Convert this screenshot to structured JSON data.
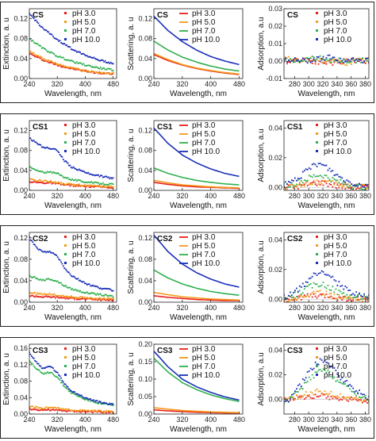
{
  "colors": {
    "pH 3.0": "#e8201c",
    "pH 5.0": "#f39a1b",
    "pH 7.0": "#2fb04f",
    "pH 10.0": "#1a2fb8"
  },
  "legend_items": [
    "pH 3.0",
    "pH 5.0",
    "pH 7.0",
    "pH 10.0"
  ],
  "chart_data": [
    {
      "sample": "CS",
      "panel": "extinction",
      "type": "scatter",
      "title": "CS",
      "xlabel": "Wavelength, nm",
      "ylabel": "Extinction, a. u",
      "xlim": [
        240,
        490
      ],
      "ylim": [
        0,
        0.14
      ],
      "xticks": [
        "240",
        "320",
        "400",
        "480"
      ],
      "yticks": [
        "0.00",
        "0.04",
        "0.08",
        "0.12"
      ],
      "x": [
        240,
        280,
        320,
        360,
        400,
        440,
        480
      ],
      "series": [
        {
          "name": "pH 3.0",
          "values": [
            0.05,
            0.037,
            0.027,
            0.02,
            0.015,
            0.011,
            0.009
          ]
        },
        {
          "name": "pH 5.0",
          "values": [
            0.055,
            0.04,
            0.029,
            0.021,
            0.016,
            0.012,
            0.01
          ]
        },
        {
          "name": "pH 7.0",
          "values": [
            0.08,
            0.06,
            0.045,
            0.035,
            0.027,
            0.021,
            0.017
          ]
        },
        {
          "name": "pH 10.0",
          "values": [
            0.13,
            0.1,
            0.078,
            0.06,
            0.047,
            0.037,
            0.03
          ]
        }
      ]
    },
    {
      "sample": "CS",
      "panel": "scattering",
      "type": "line",
      "title": "CS",
      "xlabel": "Wavelength, nm",
      "ylabel": "Scattering, a. u",
      "xlim": [
        240,
        490
      ],
      "ylim": [
        0,
        0.14
      ],
      "xticks": [
        "240",
        "320",
        "400",
        "480"
      ],
      "yticks": [
        "0.00",
        "0.04",
        "0.08",
        "0.12"
      ],
      "x": [
        240,
        280,
        320,
        360,
        400,
        440,
        480
      ],
      "series": [
        {
          "name": "pH 3.0",
          "values": [
            0.048,
            0.036,
            0.027,
            0.02,
            0.015,
            0.011,
            0.008
          ]
        },
        {
          "name": "pH 5.0",
          "values": [
            0.05,
            0.038,
            0.028,
            0.021,
            0.016,
            0.012,
            0.009
          ]
        },
        {
          "name": "pH 7.0",
          "values": [
            0.075,
            0.057,
            0.043,
            0.033,
            0.025,
            0.019,
            0.015
          ]
        },
        {
          "name": "pH 10.0",
          "values": [
            0.125,
            0.096,
            0.074,
            0.057,
            0.044,
            0.035,
            0.028
          ]
        }
      ]
    },
    {
      "sample": "CS",
      "panel": "adsorption",
      "type": "scatter",
      "title": "CS",
      "xlabel": "Wavelength, nm",
      "ylabel": "Adsorption, a.u",
      "xlim": [
        265,
        385
      ],
      "ylim": [
        -0.01,
        0.03
      ],
      "xticks": [
        "280",
        "300",
        "320",
        "340",
        "360",
        "380"
      ],
      "yticks": [
        "-0.01",
        "0.00",
        "0.01",
        "0.02",
        "0.03"
      ],
      "x": [
        270,
        290,
        310,
        330,
        350,
        370,
        385
      ],
      "series": [
        {
          "name": "pH 3.0",
          "values": [
            0,
            0.001,
            0,
            -0.001,
            0,
            0.001,
            0
          ]
        },
        {
          "name": "pH 5.0",
          "values": [
            0.001,
            0,
            0.001,
            0,
            -0.001,
            0,
            0.001
          ]
        },
        {
          "name": "pH 7.0",
          "values": [
            0,
            0.001,
            0.002,
            0.001,
            0,
            0,
            0.001
          ]
        },
        {
          "name": "pH 10.0",
          "values": [
            0.001,
            0,
            0.001,
            0.002,
            0,
            0.001,
            0
          ]
        }
      ]
    },
    {
      "sample": "CS1",
      "panel": "extinction",
      "type": "scatter",
      "title": "CS1",
      "xlabel": "Wavelength, nm",
      "ylabel": "Extinction, a. u",
      "xlim": [
        240,
        490
      ],
      "ylim": [
        0,
        0.14
      ],
      "xticks": [
        "240",
        "320",
        "400",
        "480"
      ],
      "yticks": [
        "0.00",
        "0.04",
        "0.08",
        "0.12"
      ],
      "x": [
        240,
        260,
        280,
        300,
        320,
        340,
        360,
        400,
        440,
        480
      ],
      "series": [
        {
          "name": "pH 3.0",
          "values": [
            0.018,
            0.016,
            0.015,
            0.015,
            0.013,
            0.011,
            0.01,
            0.008,
            0.007,
            0.006
          ]
        },
        {
          "name": "pH 5.0",
          "values": [
            0.022,
            0.02,
            0.019,
            0.018,
            0.016,
            0.013,
            0.012,
            0.01,
            0.008,
            0.007
          ]
        },
        {
          "name": "pH 7.0",
          "values": [
            0.047,
            0.04,
            0.036,
            0.036,
            0.034,
            0.027,
            0.022,
            0.017,
            0.014,
            0.012
          ]
        },
        {
          "name": "pH 10.0",
          "values": [
            0.105,
            0.095,
            0.086,
            0.085,
            0.08,
            0.06,
            0.047,
            0.036,
            0.029,
            0.024
          ]
        }
      ]
    },
    {
      "sample": "CS1",
      "panel": "scattering",
      "type": "line",
      "title": "CS1",
      "xlabel": "Wavelength, nm",
      "ylabel": "Scattering, a. u",
      "xlim": [
        240,
        490
      ],
      "ylim": [
        0,
        0.14
      ],
      "xticks": [
        "240",
        "320",
        "400",
        "480"
      ],
      "yticks": [
        "0.00",
        "0.04",
        "0.08",
        "0.12"
      ],
      "x": [
        240,
        280,
        320,
        360,
        400,
        440,
        480
      ],
      "series": [
        {
          "name": "pH 3.0",
          "values": [
            0.016,
            0.012,
            0.009,
            0.007,
            0.006,
            0.005,
            0.004
          ]
        },
        {
          "name": "pH 5.0",
          "values": [
            0.02,
            0.015,
            0.011,
            0.009,
            0.007,
            0.006,
            0.005
          ]
        },
        {
          "name": "pH 7.0",
          "values": [
            0.045,
            0.034,
            0.026,
            0.02,
            0.016,
            0.013,
            0.011
          ]
        },
        {
          "name": "pH 10.0",
          "values": [
            0.125,
            0.094,
            0.071,
            0.055,
            0.043,
            0.034,
            0.028
          ]
        }
      ]
    },
    {
      "sample": "CS1",
      "panel": "adsorption",
      "type": "scatter",
      "title": "CS1",
      "xlabel": "Wavelength, nm",
      "ylabel": "Adsorption, a.u",
      "xlim": [
        265,
        385
      ],
      "ylim": [
        -0.002,
        0.045
      ],
      "xticks": [
        "280",
        "300",
        "320",
        "340",
        "360",
        "380"
      ],
      "yticks": [
        "0.00",
        "0.02",
        "0.04"
      ],
      "x": [
        270,
        290,
        300,
        310,
        320,
        330,
        340,
        360,
        385
      ],
      "series": [
        {
          "name": "pH 3.0",
          "values": [
            0,
            0.001,
            0.002,
            0.003,
            0.003,
            0.002,
            0.001,
            0,
            0
          ]
        },
        {
          "name": "pH 5.0",
          "values": [
            0,
            0.002,
            0.003,
            0.004,
            0.004,
            0.003,
            0.002,
            0.001,
            0
          ]
        },
        {
          "name": "pH 7.0",
          "values": [
            0.001,
            0.004,
            0.006,
            0.008,
            0.008,
            0.006,
            0.004,
            0.001,
            0
          ]
        },
        {
          "name": "pH 10.0",
          "values": [
            0.002,
            0.008,
            0.012,
            0.016,
            0.015,
            0.012,
            0.008,
            0.003,
            0.001
          ]
        }
      ]
    },
    {
      "sample": "CS2",
      "panel": "extinction",
      "type": "scatter",
      "title": "CS2",
      "xlabel": "Wavelength, nm",
      "ylabel": "Extinction, a. u",
      "xlim": [
        240,
        490
      ],
      "ylim": [
        0,
        0.13
      ],
      "xticks": [
        "240",
        "320",
        "400",
        "480"
      ],
      "yticks": [
        "0.00",
        "0.04",
        "0.08",
        "0.12"
      ],
      "x": [
        240,
        260,
        280,
        300,
        320,
        340,
        360,
        400,
        440,
        480
      ],
      "series": [
        {
          "name": "pH 3.0",
          "values": [
            0.012,
            0.011,
            0.01,
            0.01,
            0.009,
            0.008,
            0.007,
            0.006,
            0.005,
            0.004
          ]
        },
        {
          "name": "pH 5.0",
          "values": [
            0.018,
            0.016,
            0.015,
            0.015,
            0.013,
            0.011,
            0.01,
            0.008,
            0.007,
            0.006
          ]
        },
        {
          "name": "pH 7.0",
          "values": [
            0.05,
            0.044,
            0.041,
            0.043,
            0.039,
            0.031,
            0.025,
            0.018,
            0.014,
            0.011
          ]
        },
        {
          "name": "pH 10.0",
          "values": [
            0.12,
            0.102,
            0.093,
            0.094,
            0.086,
            0.065,
            0.05,
            0.035,
            0.027,
            0.022
          ]
        }
      ]
    },
    {
      "sample": "CS2",
      "panel": "scattering",
      "type": "line",
      "title": "CS2",
      "xlabel": "Wavelength, nm",
      "ylabel": "Scattering, a. u",
      "xlim": [
        240,
        490
      ],
      "ylim": [
        0,
        0.13
      ],
      "xticks": [
        "240",
        "320",
        "400",
        "480"
      ],
      "yticks": [
        "0.00",
        "0.04",
        "0.08",
        "0.12"
      ],
      "x": [
        240,
        280,
        320,
        360,
        400,
        440,
        480
      ],
      "series": [
        {
          "name": "pH 3.0",
          "values": [
            0.012,
            0.009,
            0.007,
            0.005,
            0.004,
            0.003,
            0.003
          ]
        },
        {
          "name": "pH 5.0",
          "values": [
            0.018,
            0.014,
            0.01,
            0.008,
            0.006,
            0.005,
            0.004
          ]
        },
        {
          "name": "pH 7.0",
          "values": [
            0.06,
            0.045,
            0.034,
            0.026,
            0.02,
            0.016,
            0.013
          ]
        },
        {
          "name": "pH 10.0",
          "values": [
            0.125,
            0.094,
            0.071,
            0.055,
            0.043,
            0.034,
            0.028
          ]
        }
      ]
    },
    {
      "sample": "CS2",
      "panel": "adsorption",
      "type": "scatter",
      "title": "CS2",
      "xlabel": "Wavelength, nm",
      "ylabel": "Adsorption, a.u",
      "xlim": [
        265,
        385
      ],
      "ylim": [
        -0.002,
        0.045
      ],
      "xticks": [
        "280",
        "300",
        "320",
        "340",
        "360",
        "380"
      ],
      "yticks": [
        "0.00",
        "0.02",
        "0.04"
      ],
      "x": [
        270,
        290,
        300,
        310,
        320,
        330,
        340,
        360,
        385
      ],
      "series": [
        {
          "name": "pH 3.0",
          "values": [
            0,
            0.001,
            0.002,
            0.002,
            0.002,
            0.002,
            0.001,
            0,
            0
          ]
        },
        {
          "name": "pH 5.0",
          "values": [
            0,
            0.002,
            0.003,
            0.004,
            0.004,
            0.003,
            0.002,
            0.001,
            0
          ]
        },
        {
          "name": "pH 7.0",
          "values": [
            0.001,
            0.005,
            0.008,
            0.01,
            0.01,
            0.008,
            0.005,
            0.002,
            0.001
          ]
        },
        {
          "name": "pH 10.0",
          "values": [
            0.002,
            0.008,
            0.013,
            0.017,
            0.019,
            0.016,
            0.011,
            0.005,
            0.001
          ]
        }
      ]
    },
    {
      "sample": "CS3",
      "panel": "extinction",
      "type": "scatter",
      "title": "CS3",
      "xlabel": "Wavelength, nm",
      "ylabel": "Extinction, a. u",
      "xlim": [
        240,
        490
      ],
      "ylim": [
        0,
        0.17
      ],
      "xticks": [
        "240",
        "320",
        "400",
        "480"
      ],
      "yticks": [
        "0.00",
        "0.04",
        "0.08",
        "0.12",
        "0.16"
      ],
      "x": [
        240,
        260,
        280,
        300,
        320,
        340,
        360,
        400,
        440,
        480
      ],
      "series": [
        {
          "name": "pH 3.0",
          "values": [
            0.012,
            0.011,
            0.01,
            0.01,
            0.009,
            0.008,
            0.007,
            0.006,
            0.005,
            0.004
          ]
        },
        {
          "name": "pH 5.0",
          "values": [
            0.018,
            0.016,
            0.015,
            0.016,
            0.014,
            0.011,
            0.01,
            0.008,
            0.007,
            0.006
          ]
        },
        {
          "name": "pH 7.0",
          "values": [
            0.13,
            0.11,
            0.097,
            0.103,
            0.09,
            0.068,
            0.052,
            0.036,
            0.027,
            0.021
          ]
        },
        {
          "name": "pH 10.0",
          "values": [
            0.15,
            0.126,
            0.11,
            0.117,
            0.1,
            0.075,
            0.057,
            0.039,
            0.029,
            0.023
          ]
        }
      ]
    },
    {
      "sample": "CS3",
      "panel": "scattering",
      "type": "line",
      "title": "CS3",
      "xlabel": "Wavelength, nm",
      "ylabel": "Scattering, a. u",
      "xlim": [
        240,
        490
      ],
      "ylim": [
        0,
        0.2
      ],
      "xticks": [
        "240",
        "320",
        "400",
        "480"
      ],
      "yticks": [
        "0.00",
        "0.05",
        "0.10",
        "0.15",
        "0.20"
      ],
      "x": [
        240,
        280,
        320,
        360,
        400,
        440,
        480
      ],
      "series": [
        {
          "name": "pH 3.0",
          "values": [
            0.012,
            0.009,
            0.007,
            0.005,
            0.004,
            0.003,
            0.003
          ]
        },
        {
          "name": "pH 5.0",
          "values": [
            0.018,
            0.014,
            0.01,
            0.008,
            0.006,
            0.005,
            0.004
          ]
        },
        {
          "name": "pH 7.0",
          "values": [
            0.16,
            0.12,
            0.09,
            0.07,
            0.055,
            0.044,
            0.036
          ]
        },
        {
          "name": "pH 10.0",
          "values": [
            0.18,
            0.135,
            0.1,
            0.078,
            0.062,
            0.049,
            0.04
          ]
        }
      ]
    },
    {
      "sample": "CS3",
      "panel": "adsorption",
      "type": "scatter",
      "title": "CS3",
      "xlabel": "Wavelength, nm",
      "ylabel": "Adsorption, a.u",
      "xlim": [
        265,
        385
      ],
      "ylim": [
        -0.012,
        0.045
      ],
      "xticks": [
        "280",
        "300",
        "320",
        "340",
        "360",
        "380"
      ],
      "yticks": [
        "0.00",
        "0.02",
        "0.04"
      ],
      "x": [
        270,
        290,
        300,
        310,
        320,
        330,
        340,
        360,
        385
      ],
      "series": [
        {
          "name": "pH 3.0",
          "values": [
            0,
            0.002,
            0.003,
            0.003,
            0.003,
            0.002,
            0.001,
            0,
            -0.001
          ]
        },
        {
          "name": "pH 5.0",
          "values": [
            0,
            0.003,
            0.005,
            0.006,
            0.006,
            0.005,
            0.003,
            0.001,
            -0.001
          ]
        },
        {
          "name": "pH 7.0",
          "values": [
            -0.002,
            0.009,
            0.016,
            0.021,
            0.024,
            0.021,
            0.016,
            0.007,
            0
          ]
        },
        {
          "name": "pH 10.0",
          "values": [
            -0.001,
            0.013,
            0.022,
            0.029,
            0.032,
            0.028,
            0.021,
            0.01,
            0.001
          ]
        }
      ]
    }
  ]
}
